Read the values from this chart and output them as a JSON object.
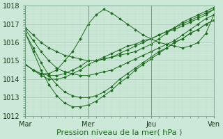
{
  "xlabel": "Pression niveau de la mer( hPa )",
  "bg_color": "#cce8d8",
  "grid_major_color": "#aaccb8",
  "grid_minor_color": "#bbddc8",
  "line_color": "#1a6b1a",
  "ylim": [
    1012,
    1018
  ],
  "yticks": [
    1012,
    1013,
    1014,
    1015,
    1016,
    1017,
    1018
  ],
  "xtick_labels": [
    "Mar",
    "Mer",
    "Jeu",
    "Ven"
  ],
  "xtick_positions": [
    0,
    48,
    96,
    144
  ],
  "xlim": [
    0,
    144
  ],
  "num_points": 25,
  "series": [
    [
      1016.8,
      1016.4,
      1016.0,
      1015.7,
      1015.5,
      1015.3,
      1015.2,
      1015.1,
      1015.0,
      1015.0,
      1015.1,
      1015.2,
      1015.4,
      1015.6,
      1015.8,
      1016.0,
      1016.2,
      1016.4,
      1016.6,
      1016.8,
      1017.0,
      1017.2,
      1017.4,
      1017.6,
      1017.8
    ],
    [
      1016.7,
      1016.1,
      1015.5,
      1015.0,
      1014.6,
      1014.4,
      1014.3,
      1014.2,
      1014.2,
      1014.3,
      1014.4,
      1014.5,
      1014.7,
      1014.9,
      1015.1,
      1015.3,
      1015.5,
      1015.7,
      1015.9,
      1016.1,
      1016.4,
      1016.7,
      1017.0,
      1017.3,
      1017.5
    ],
    [
      1016.5,
      1015.7,
      1014.9,
      1014.2,
      1013.7,
      1013.3,
      1013.1,
      1013.0,
      1013.0,
      1013.1,
      1013.3,
      1013.6,
      1014.0,
      1014.3,
      1014.6,
      1014.9,
      1015.2,
      1015.5,
      1015.7,
      1016.0,
      1016.2,
      1016.5,
      1016.7,
      1017.0,
      1017.2
    ],
    [
      1016.5,
      1015.5,
      1014.5,
      1013.7,
      1013.1,
      1012.7,
      1012.5,
      1012.5,
      1012.6,
      1012.8,
      1013.1,
      1013.4,
      1013.8,
      1014.1,
      1014.5,
      1014.8,
      1015.1,
      1015.4,
      1015.7,
      1016.0,
      1016.2,
      1016.5,
      1016.7,
      1017.0,
      1017.2
    ],
    [
      1014.8,
      1014.5,
      1014.3,
      1014.2,
      1014.2,
      1014.3,
      1014.5,
      1014.7,
      1015.0,
      1015.0,
      1015.1,
      1015.2,
      1015.3,
      1015.4,
      1015.5,
      1015.7,
      1015.9,
      1016.2,
      1016.5,
      1016.8,
      1017.1,
      1017.3,
      1017.5,
      1017.7,
      1017.9
    ],
    [
      1014.8,
      1014.5,
      1014.3,
      1014.3,
      1014.5,
      1015.0,
      1015.5,
      1016.2,
      1017.0,
      1017.5,
      1017.8,
      1017.6,
      1017.3,
      1017.0,
      1016.7,
      1016.4,
      1016.2,
      1016.0,
      1015.9,
      1015.8,
      1015.7,
      1015.8,
      1016.0,
      1016.5,
      1017.5
    ],
    [
      1014.8,
      1014.5,
      1014.2,
      1014.0,
      1014.0,
      1014.1,
      1014.3,
      1014.5,
      1014.8,
      1015.0,
      1015.2,
      1015.4,
      1015.6,
      1015.8,
      1015.9,
      1016.1,
      1016.2,
      1016.4,
      1016.6,
      1016.7,
      1016.9,
      1017.1,
      1017.3,
      1017.5,
      1017.8
    ]
  ],
  "figsize": [
    3.2,
    2.0
  ],
  "dpi": 100,
  "tick_fontsize": 7,
  "xlabel_fontsize": 8
}
